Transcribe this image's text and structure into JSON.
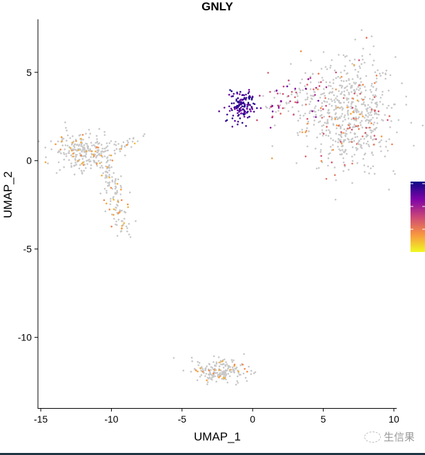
{
  "chart_data": {
    "type": "scatter",
    "title": "GNLY",
    "xlabel": "UMAP_1",
    "ylabel": "UMAP_2",
    "xlim": [
      -15.2,
      10.2
    ],
    "ylim": [
      -14,
      8
    ],
    "xticks": [
      -15,
      -10,
      -5,
      0,
      5,
      10
    ],
    "yticks": [
      -10,
      -5,
      0,
      5
    ],
    "xtick_labels": [
      "-15",
      "-10",
      "-5",
      "0",
      "5",
      "10"
    ],
    "ytick_labels": [
      "-10",
      "-5",
      "0",
      "5"
    ],
    "grid": false,
    "legend": {
      "type": "continuous-colorbar",
      "placement": "right",
      "colors": [
        "#f0f921",
        "#f89540",
        "#cc4778",
        "#7e03a8",
        "#0d0887"
      ]
    },
    "color_low": "#c8c8c8",
    "clusters": [
      {
        "name": "right-large",
        "cx": 6.8,
        "cy": 2.6,
        "sx": 1.6,
        "sy": 1.6,
        "n": 650,
        "expr_frac": 0.12,
        "level": [
          0.2,
          0.5
        ]
      },
      {
        "name": "bridge",
        "x0": 0.8,
        "y0": 2.9,
        "x1": 4.5,
        "y1": 4.0,
        "spread": 0.5,
        "n": 90,
        "expr_frac": 0.5,
        "level": [
          0.4,
          0.8
        ]
      },
      {
        "name": "nk-cluster",
        "cx": -0.8,
        "cy": 3.1,
        "sx": 0.5,
        "sy": 0.4,
        "n": 140,
        "expr_frac": 1.0,
        "level": [
          0.75,
          1.0
        ]
      },
      {
        "name": "left-blob",
        "cx": -12,
        "cy": 0.5,
        "sx": 1.0,
        "sy": 0.5,
        "n": 260,
        "expr_frac": 0.12,
        "level": [
          0.15,
          0.3
        ]
      },
      {
        "name": "left-arm",
        "x0": -10.3,
        "y0": 0,
        "x1": -9.1,
        "y1": -4.1,
        "spread": 0.35,
        "n": 130,
        "expr_frac": 0.2,
        "level": [
          0.15,
          0.3
        ]
      },
      {
        "name": "left-spur",
        "x0": -9.8,
        "y0": 0.6,
        "x1": -7.6,
        "y1": 1.5,
        "spread": 0.12,
        "n": 25,
        "expr_frac": 0.3,
        "level": [
          0.15,
          0.3
        ]
      },
      {
        "name": "bottom",
        "cx": -2.2,
        "cy": -11.9,
        "sx": 1.0,
        "sy": 0.35,
        "n": 200,
        "expr_frac": 0.1,
        "level": [
          0.15,
          0.3
        ]
      }
    ]
  },
  "watermark": "生信果"
}
